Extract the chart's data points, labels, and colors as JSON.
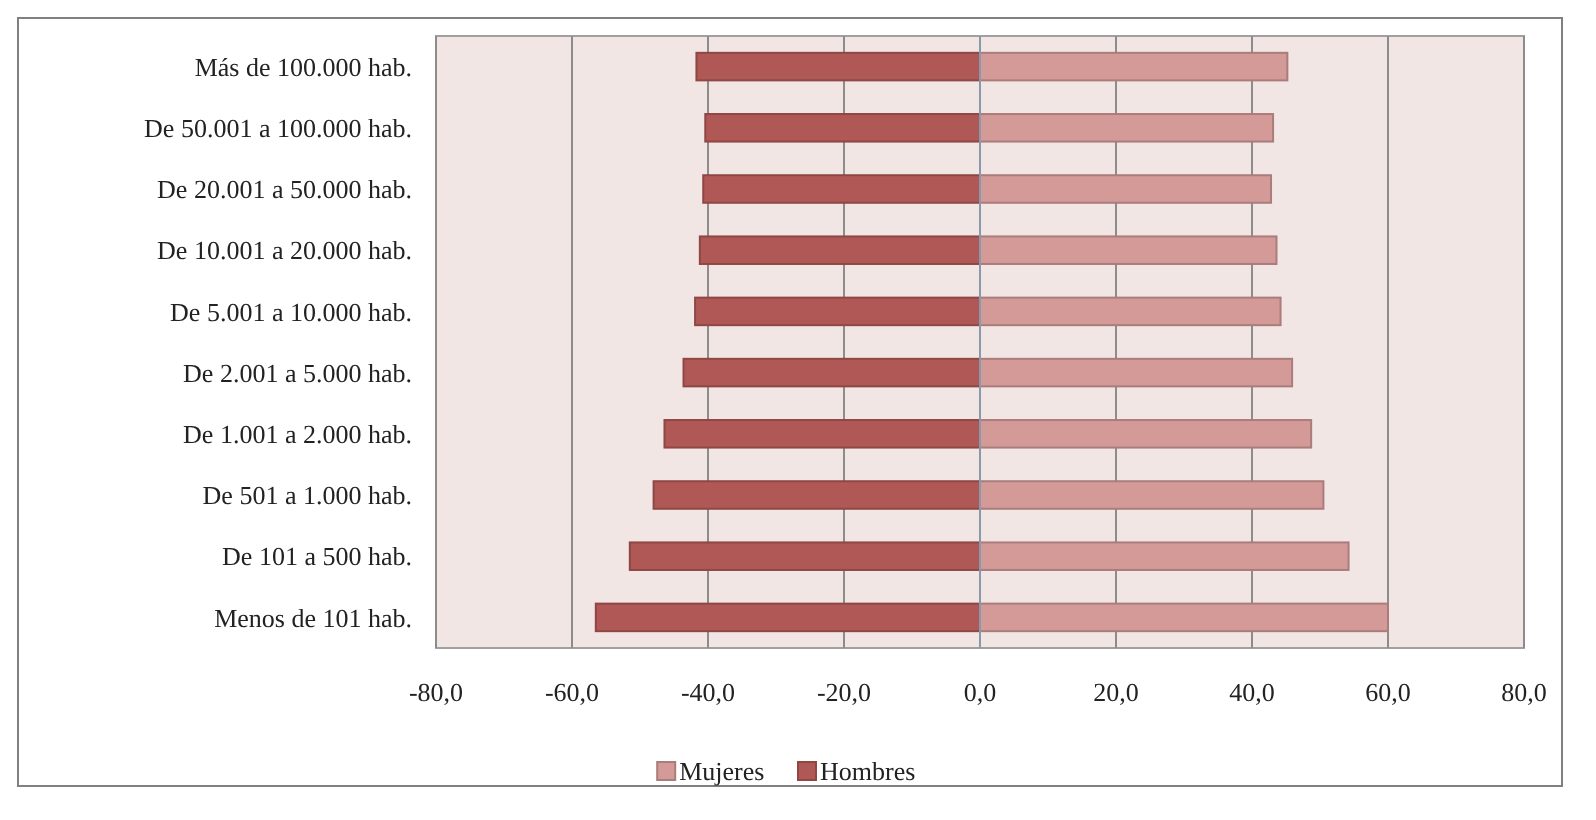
{
  "chart_data": {
    "type": "bar",
    "orientation": "horizontal",
    "stacked": true,
    "categories": [
      "Más de 100.000 hab.",
      "De 50.001 a 100.000 hab.",
      "De 20.001 a 50.000 hab.",
      "De 10.001 a 20.000 hab.",
      "De 5.001 a 10.000 hab.",
      "De 2.001 a 5.000 hab.",
      "De 1.001 a 2.000 hab.",
      "De 501 a 1.000 hab.",
      "De 101 a 500 hab.",
      "Menos de 101 hab."
    ],
    "series": [
      {
        "name": "Mujeres",
        "color": "#d39a98",
        "values": [
          45.2,
          43.1,
          42.8,
          43.6,
          44.2,
          45.9,
          48.7,
          50.5,
          54.2,
          60.0
        ]
      },
      {
        "name": "Hombres",
        "color": "#b05856",
        "values": [
          -41.7,
          -40.4,
          -40.7,
          -41.2,
          -41.9,
          -43.6,
          -46.4,
          -48.0,
          -51.5,
          -56.5
        ]
      }
    ],
    "xlim": [
      -80,
      80
    ],
    "xticks": [
      {
        "value": -80,
        "label": "-80,0"
      },
      {
        "value": -60,
        "label": "-60,0"
      },
      {
        "value": -40,
        "label": "-40,0"
      },
      {
        "value": -20,
        "label": "-20,0"
      },
      {
        "value": 0,
        "label": "0,0"
      },
      {
        "value": 20,
        "label": "20,0"
      },
      {
        "value": 40,
        "label": "40,0"
      },
      {
        "value": 60,
        "label": "60,0"
      },
      {
        "value": 80,
        "label": "80,0"
      }
    ],
    "grid": "x",
    "legend": "bottom"
  }
}
